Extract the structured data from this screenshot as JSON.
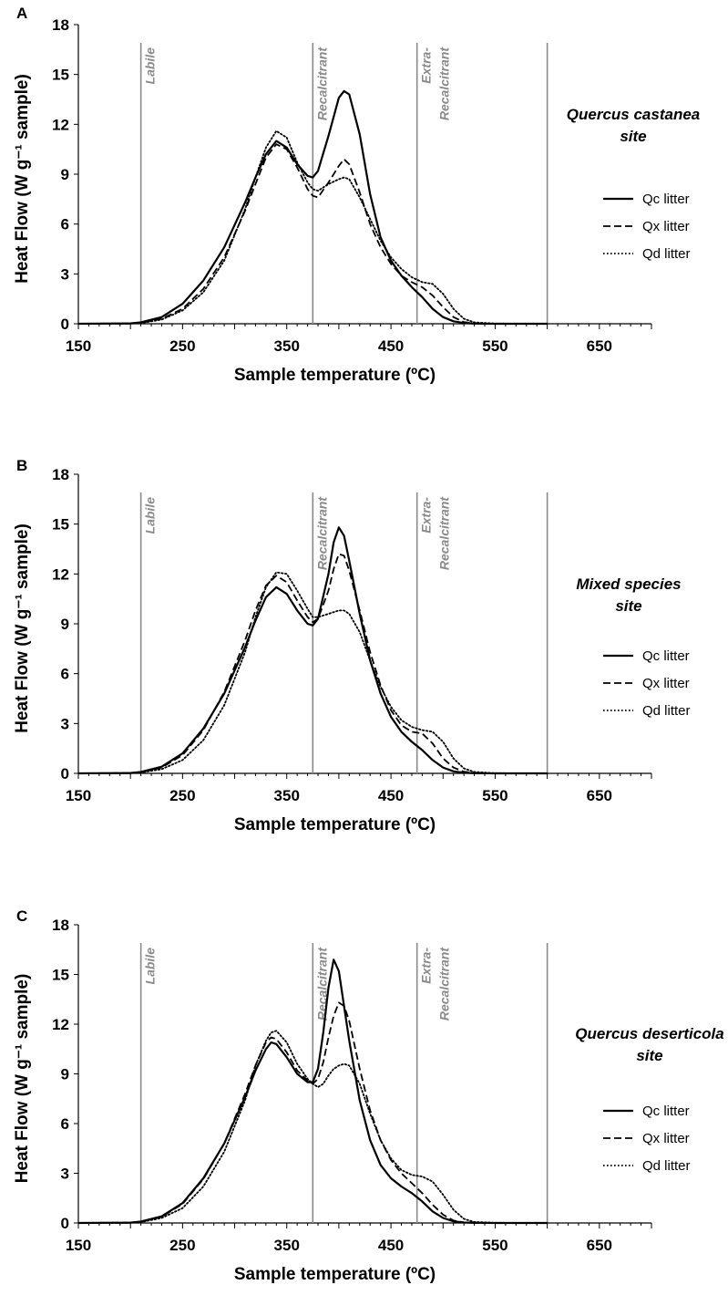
{
  "figure": {
    "xlabel": "Sample temperature (ºC)",
    "ylabel": "Heat Flow  (W g⁻¹ sample)",
    "x_ticks": [
      150,
      250,
      350,
      450,
      550,
      650
    ],
    "y_ticks": [
      0,
      3,
      6,
      9,
      12,
      15,
      18
    ],
    "xlim": [
      150,
      700
    ],
    "ylim": [
      0,
      18
    ],
    "region_boundaries": [
      210,
      375,
      475,
      600
    ],
    "legend_entries": [
      "Qc litter",
      "Qx litter",
      "Qd litter"
    ],
    "colors": {
      "lines": "#000000",
      "region_lines": "#8a8a8a",
      "region_text": "#8a8a8a"
    }
  },
  "chart_data": [
    {
      "type": "line",
      "panel": "A",
      "title": "Quercus castanea site",
      "title_lines": [
        "Quercus castanea",
        "site"
      ],
      "region_labels": [
        [
          "Labile"
        ],
        [
          "Recalcitrant"
        ],
        [
          "Extra-",
          "Recalcitrant"
        ]
      ],
      "xlabel": "Sample temperature (ºC)",
      "ylabel": "Heat Flow  (W g⁻¹ sample)",
      "xlim": [
        150,
        700
      ],
      "ylim": [
        0,
        18
      ],
      "series": [
        {
          "name": "Qc litter",
          "style": "solid",
          "x": [
            150,
            200,
            210,
            230,
            250,
            270,
            290,
            310,
            320,
            330,
            340,
            350,
            360,
            370,
            375,
            380,
            390,
            400,
            405,
            410,
            420,
            430,
            440,
            450,
            460,
            470,
            480,
            490,
            500,
            510,
            520,
            530,
            550,
            600
          ],
          "y": [
            0,
            0.02,
            0.08,
            0.4,
            1.2,
            2.6,
            4.6,
            7.3,
            8.8,
            10.2,
            11.0,
            10.6,
            9.6,
            8.9,
            8.8,
            9.2,
            11.3,
            13.6,
            14.0,
            13.8,
            11.4,
            7.8,
            5.2,
            3.8,
            2.9,
            2.2,
            1.6,
            0.9,
            0.4,
            0.15,
            0.05,
            0.01,
            0,
            0
          ]
        },
        {
          "name": "Qx litter",
          "style": "dashed",
          "x": [
            150,
            200,
            210,
            230,
            250,
            270,
            290,
            310,
            320,
            330,
            340,
            350,
            360,
            370,
            375,
            380,
            390,
            400,
            405,
            410,
            420,
            430,
            440,
            450,
            460,
            470,
            480,
            490,
            500,
            510,
            520,
            530,
            550,
            600
          ],
          "y": [
            0,
            0.02,
            0.06,
            0.3,
            0.9,
            2.1,
            4.0,
            6.8,
            8.4,
            10.0,
            10.8,
            10.5,
            9.4,
            8.1,
            7.7,
            7.6,
            8.5,
            9.5,
            9.9,
            9.6,
            7.9,
            6.0,
            4.6,
            3.6,
            2.9,
            2.5,
            2.2,
            1.7,
            1.0,
            0.4,
            0.1,
            0.03,
            0,
            0
          ]
        },
        {
          "name": "Qd litter",
          "style": "dotted",
          "x": [
            150,
            200,
            210,
            230,
            250,
            270,
            290,
            310,
            320,
            330,
            340,
            350,
            360,
            370,
            375,
            380,
            390,
            400,
            405,
            410,
            420,
            430,
            440,
            450,
            460,
            470,
            480,
            490,
            500,
            510,
            520,
            530,
            550,
            600
          ],
          "y": [
            0,
            0.01,
            0.04,
            0.25,
            0.8,
            1.9,
            3.8,
            6.9,
            8.8,
            10.6,
            11.6,
            11.2,
            9.7,
            8.5,
            8.1,
            8.0,
            8.4,
            8.7,
            8.8,
            8.7,
            7.6,
            6.3,
            5.0,
            4.0,
            3.3,
            2.8,
            2.5,
            2.4,
            1.8,
            0.9,
            0.3,
            0.08,
            0.01,
            0
          ]
        }
      ]
    },
    {
      "type": "line",
      "panel": "B",
      "title": "Mixed species site",
      "title_lines": [
        "Mixed species",
        "site"
      ],
      "region_labels": [
        [
          "Labile"
        ],
        [
          "Recalcitrant"
        ],
        [
          "Extra-",
          "Recalcitrant"
        ]
      ],
      "xlabel": "Sample temperature (ºC)",
      "ylabel": "Heat Flow  (W g⁻¹ sample)",
      "xlim": [
        150,
        700
      ],
      "ylim": [
        0,
        18
      ],
      "series": [
        {
          "name": "Qc litter",
          "style": "solid",
          "x": [
            150,
            200,
            210,
            230,
            250,
            270,
            290,
            310,
            320,
            330,
            340,
            350,
            360,
            370,
            375,
            380,
            390,
            395,
            400,
            405,
            410,
            420,
            430,
            440,
            450,
            460,
            470,
            480,
            490,
            500,
            510,
            520,
            530,
            550,
            600
          ],
          "y": [
            0,
            0.02,
            0.08,
            0.4,
            1.2,
            2.7,
            4.8,
            7.6,
            9.2,
            10.6,
            11.2,
            10.8,
            9.8,
            9.0,
            8.9,
            9.3,
            12.0,
            13.9,
            14.8,
            14.3,
            12.8,
            9.6,
            6.8,
            4.8,
            3.4,
            2.5,
            1.9,
            1.4,
            0.8,
            0.35,
            0.12,
            0.04,
            0.01,
            0,
            0
          ]
        },
        {
          "name": "Qx litter",
          "style": "dashed",
          "x": [
            150,
            200,
            210,
            230,
            250,
            270,
            290,
            310,
            320,
            330,
            340,
            350,
            360,
            370,
            375,
            380,
            390,
            395,
            400,
            405,
            410,
            420,
            430,
            440,
            450,
            460,
            470,
            480,
            490,
            500,
            510,
            520,
            530,
            550,
            600
          ],
          "y": [
            0,
            0.02,
            0.07,
            0.35,
            1.1,
            2.6,
            4.9,
            8.0,
            9.8,
            11.3,
            11.9,
            11.5,
            10.4,
            9.4,
            9.1,
            9.3,
            11.0,
            12.3,
            13.2,
            13.1,
            12.2,
            9.8,
            7.3,
            5.3,
            3.8,
            2.9,
            2.5,
            2.4,
            1.8,
            0.9,
            0.35,
            0.1,
            0.03,
            0,
            0
          ]
        },
        {
          "name": "Qd litter",
          "style": "dotted",
          "x": [
            150,
            200,
            210,
            230,
            250,
            270,
            290,
            310,
            320,
            330,
            340,
            350,
            360,
            370,
            375,
            380,
            390,
            395,
            400,
            405,
            410,
            420,
            430,
            440,
            450,
            460,
            470,
            480,
            490,
            500,
            510,
            520,
            530,
            550,
            600
          ],
          "y": [
            0,
            0.01,
            0.05,
            0.25,
            0.8,
            2.0,
            4.1,
            7.3,
            9.4,
            11.2,
            12.1,
            12.0,
            11.0,
            9.9,
            9.4,
            9.4,
            9.6,
            9.7,
            9.8,
            9.8,
            9.6,
            8.5,
            6.8,
            5.2,
            4.0,
            3.2,
            2.8,
            2.6,
            2.5,
            1.9,
            0.9,
            0.3,
            0.08,
            0.01,
            0
          ]
        }
      ]
    },
    {
      "type": "line",
      "panel": "C",
      "title": "Quercus deserticola site",
      "title_lines": [
        "Quercus deserticola",
        "site"
      ],
      "region_labels": [
        [
          "Labile"
        ],
        [
          "Recalcitrant"
        ],
        [
          "Extra-",
          "Recalcitrant"
        ]
      ],
      "xlabel": "Sample temperature (ºC)",
      "ylabel": "Heat Flow  (W g⁻¹ sample)",
      "xlim": [
        150,
        700
      ],
      "ylim": [
        0,
        18
      ],
      "series": [
        {
          "name": "Qc litter",
          "style": "solid",
          "x": [
            150,
            200,
            210,
            230,
            250,
            270,
            290,
            310,
            320,
            330,
            335,
            340,
            350,
            360,
            370,
            375,
            380,
            385,
            390,
            395,
            400,
            410,
            420,
            430,
            440,
            450,
            460,
            470,
            480,
            490,
            500,
            510,
            520,
            530,
            550,
            600
          ],
          "y": [
            0,
            0.02,
            0.08,
            0.4,
            1.2,
            2.7,
            4.8,
            7.6,
            9.2,
            10.5,
            10.9,
            10.8,
            10.0,
            9.0,
            8.5,
            8.5,
            9.3,
            11.5,
            14.2,
            15.9,
            15.2,
            11.0,
            7.4,
            5.0,
            3.5,
            2.7,
            2.2,
            1.8,
            1.3,
            0.7,
            0.3,
            0.1,
            0.03,
            0.01,
            0,
            0
          ]
        },
        {
          "name": "Qx litter",
          "style": "dashed",
          "x": [
            150,
            200,
            210,
            230,
            250,
            270,
            290,
            310,
            320,
            330,
            335,
            340,
            350,
            360,
            370,
            375,
            380,
            385,
            390,
            395,
            400,
            405,
            410,
            420,
            430,
            440,
            450,
            460,
            470,
            480,
            490,
            500,
            510,
            520,
            530,
            550,
            600
          ],
          "y": [
            0,
            0.02,
            0.07,
            0.38,
            1.15,
            2.65,
            4.8,
            7.8,
            9.5,
            10.9,
            11.2,
            11.1,
            10.3,
            9.2,
            8.6,
            8.4,
            8.7,
            9.7,
            11.2,
            12.5,
            13.3,
            13.1,
            12.2,
            9.3,
            6.8,
            5.0,
            3.8,
            3.0,
            2.4,
            1.8,
            1.1,
            0.5,
            0.15,
            0.04,
            0.01,
            0,
            0
          ]
        },
        {
          "name": "Qd litter",
          "style": "dotted",
          "x": [
            150,
            200,
            210,
            230,
            250,
            270,
            290,
            310,
            320,
            330,
            335,
            340,
            350,
            360,
            370,
            375,
            380,
            385,
            390,
            395,
            400,
            405,
            410,
            420,
            430,
            440,
            450,
            460,
            470,
            480,
            490,
            500,
            510,
            520,
            530,
            550,
            600
          ],
          "y": [
            0,
            0.01,
            0.05,
            0.3,
            0.9,
            2.2,
            4.3,
            7.4,
            9.5,
            11.0,
            11.5,
            11.6,
            10.9,
            9.6,
            8.7,
            8.4,
            8.2,
            8.4,
            8.9,
            9.3,
            9.5,
            9.6,
            9.5,
            8.4,
            6.6,
            5.0,
            3.9,
            3.2,
            2.9,
            2.8,
            2.5,
            1.7,
            0.8,
            0.25,
            0.06,
            0.01,
            0
          ]
        }
      ]
    }
  ]
}
